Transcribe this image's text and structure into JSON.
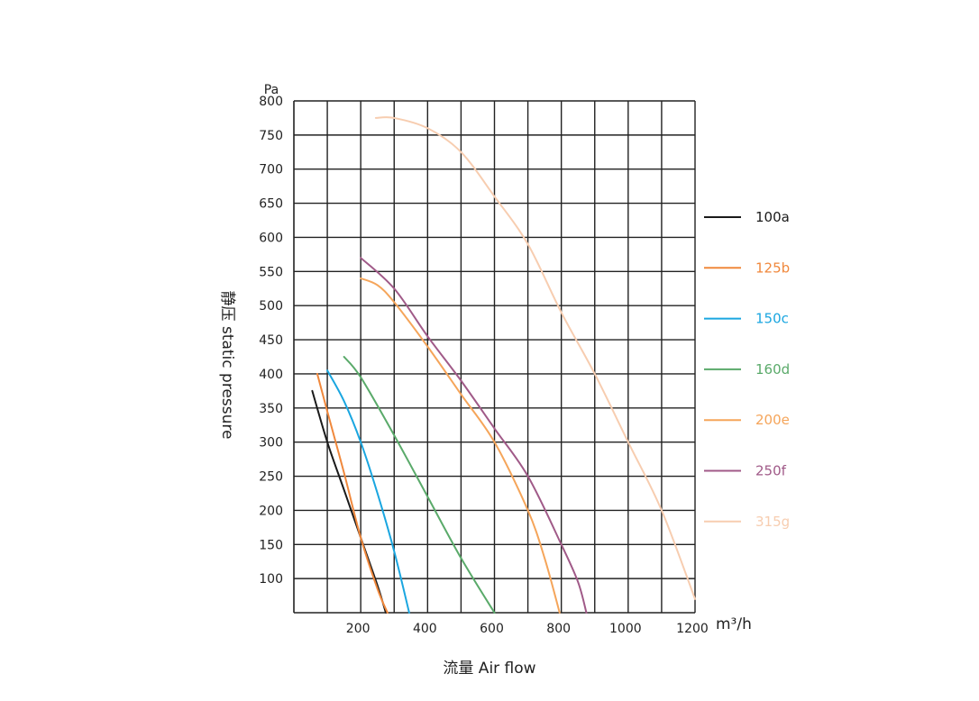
{
  "chart_data": {
    "type": "line",
    "xlabel": "流量 Air flow",
    "ylabel": "静压 static pressure",
    "x_unit": "m³/h",
    "y_unit": "Pa",
    "xlim": [
      0,
      1200
    ],
    "ylim": [
      50,
      800
    ],
    "x_ticks": [
      "200",
      "400",
      "600",
      "800",
      "1000",
      "1200"
    ],
    "x_tick_values": [
      200,
      400,
      600,
      800,
      1000,
      1200
    ],
    "y_ticks": [
      "100",
      "150",
      "200",
      "250",
      "300",
      "350",
      "400",
      "450",
      "500",
      "550",
      "600",
      "650",
      "700",
      "750",
      "800"
    ],
    "y_tick_values": [
      100,
      150,
      200,
      250,
      300,
      350,
      400,
      450,
      500,
      550,
      600,
      650,
      700,
      750,
      800
    ],
    "grid": true,
    "legend_position": "right",
    "series": [
      {
        "name": "100a",
        "color": "#1a1a1a",
        "x": [
          55,
          100,
          150,
          200,
          250,
          275
        ],
        "y": [
          375,
          300,
          230,
          160,
          90,
          50
        ]
      },
      {
        "name": "125b",
        "color": "#f0883c",
        "x": [
          70,
          100,
          150,
          200,
          250,
          280
        ],
        "y": [
          400,
          345,
          255,
          160,
          85,
          50
        ]
      },
      {
        "name": "150c",
        "color": "#1aa6e0",
        "x": [
          100,
          150,
          200,
          250,
          300,
          345
        ],
        "y": [
          405,
          360,
          300,
          225,
          140,
          50
        ]
      },
      {
        "name": "160d",
        "color": "#5aaa6a",
        "x": [
          150,
          200,
          300,
          400,
          500,
          600
        ],
        "y": [
          425,
          395,
          310,
          220,
          130,
          50
        ]
      },
      {
        "name": "200e",
        "color": "#f5a55a",
        "x": [
          200,
          250,
          300,
          400,
          500,
          600,
          700,
          750,
          795
        ],
        "y": [
          540,
          530,
          505,
          440,
          370,
          300,
          200,
          130,
          50
        ]
      },
      {
        "name": "250f",
        "color": "#a05a88",
        "x": [
          200,
          300,
          400,
          500,
          600,
          700,
          800,
          850,
          875
        ],
        "y": [
          570,
          525,
          455,
          390,
          320,
          250,
          150,
          95,
          50
        ]
      },
      {
        "name": "315g",
        "color": "#f7cdb0",
        "x": [
          245,
          300,
          400,
          500,
          600,
          700,
          800,
          900,
          1000,
          1100,
          1200
        ],
        "y": [
          775,
          775,
          760,
          725,
          660,
          590,
          490,
          400,
          300,
          200,
          70
        ]
      }
    ]
  }
}
